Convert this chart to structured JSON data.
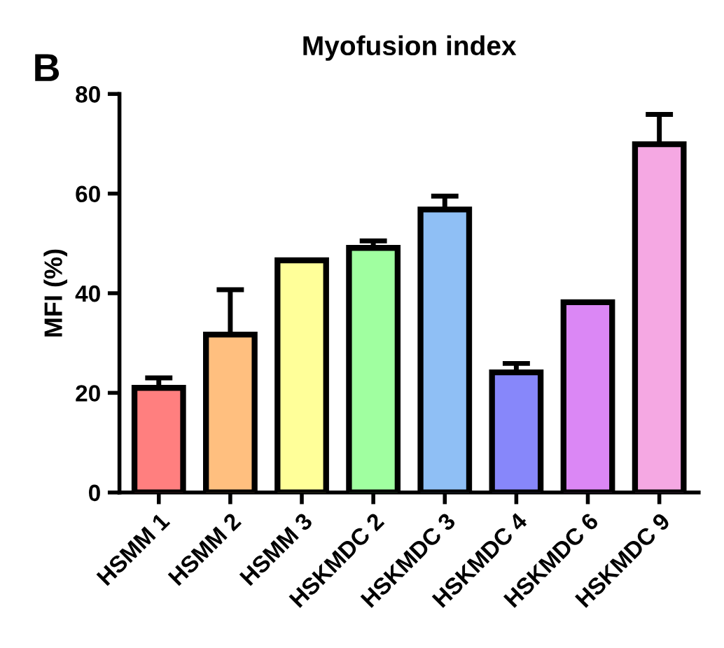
{
  "chart_data": {
    "type": "bar",
    "title": "Myofusion index",
    "ylabel": "MFI (%)",
    "annotations": [
      "B"
    ],
    "categories": [
      "HSMM 1",
      "HSMM 2",
      "HSMM 3",
      "HSKMDC 2",
      "HSKMDC 3",
      "HSKMDC 4",
      "HSKMDC 6",
      "HSKMDC 9"
    ],
    "values": [
      21,
      31.7,
      46.6,
      49.1,
      56.8,
      24.1,
      38.2,
      69.9
    ],
    "errors": [
      [
        21,
        23
      ],
      [
        31.7,
        40.7
      ],
      null,
      [
        49.1,
        50.5
      ],
      [
        56.8,
        59.5
      ],
      [
        24.1,
        25.9
      ],
      null,
      [
        69.9,
        75.9
      ]
    ],
    "colors": [
      "#ff7f7f",
      "#ffbf7f",
      "#ffff99",
      "#a0ffa0",
      "#8fbff5",
      "#8787fa",
      "#db87f5",
      "#f5a8e3"
    ],
    "ylim": [
      0,
      80
    ],
    "yticks": [
      0,
      20,
      40,
      60,
      80
    ],
    "grid": false,
    "legend": false
  }
}
